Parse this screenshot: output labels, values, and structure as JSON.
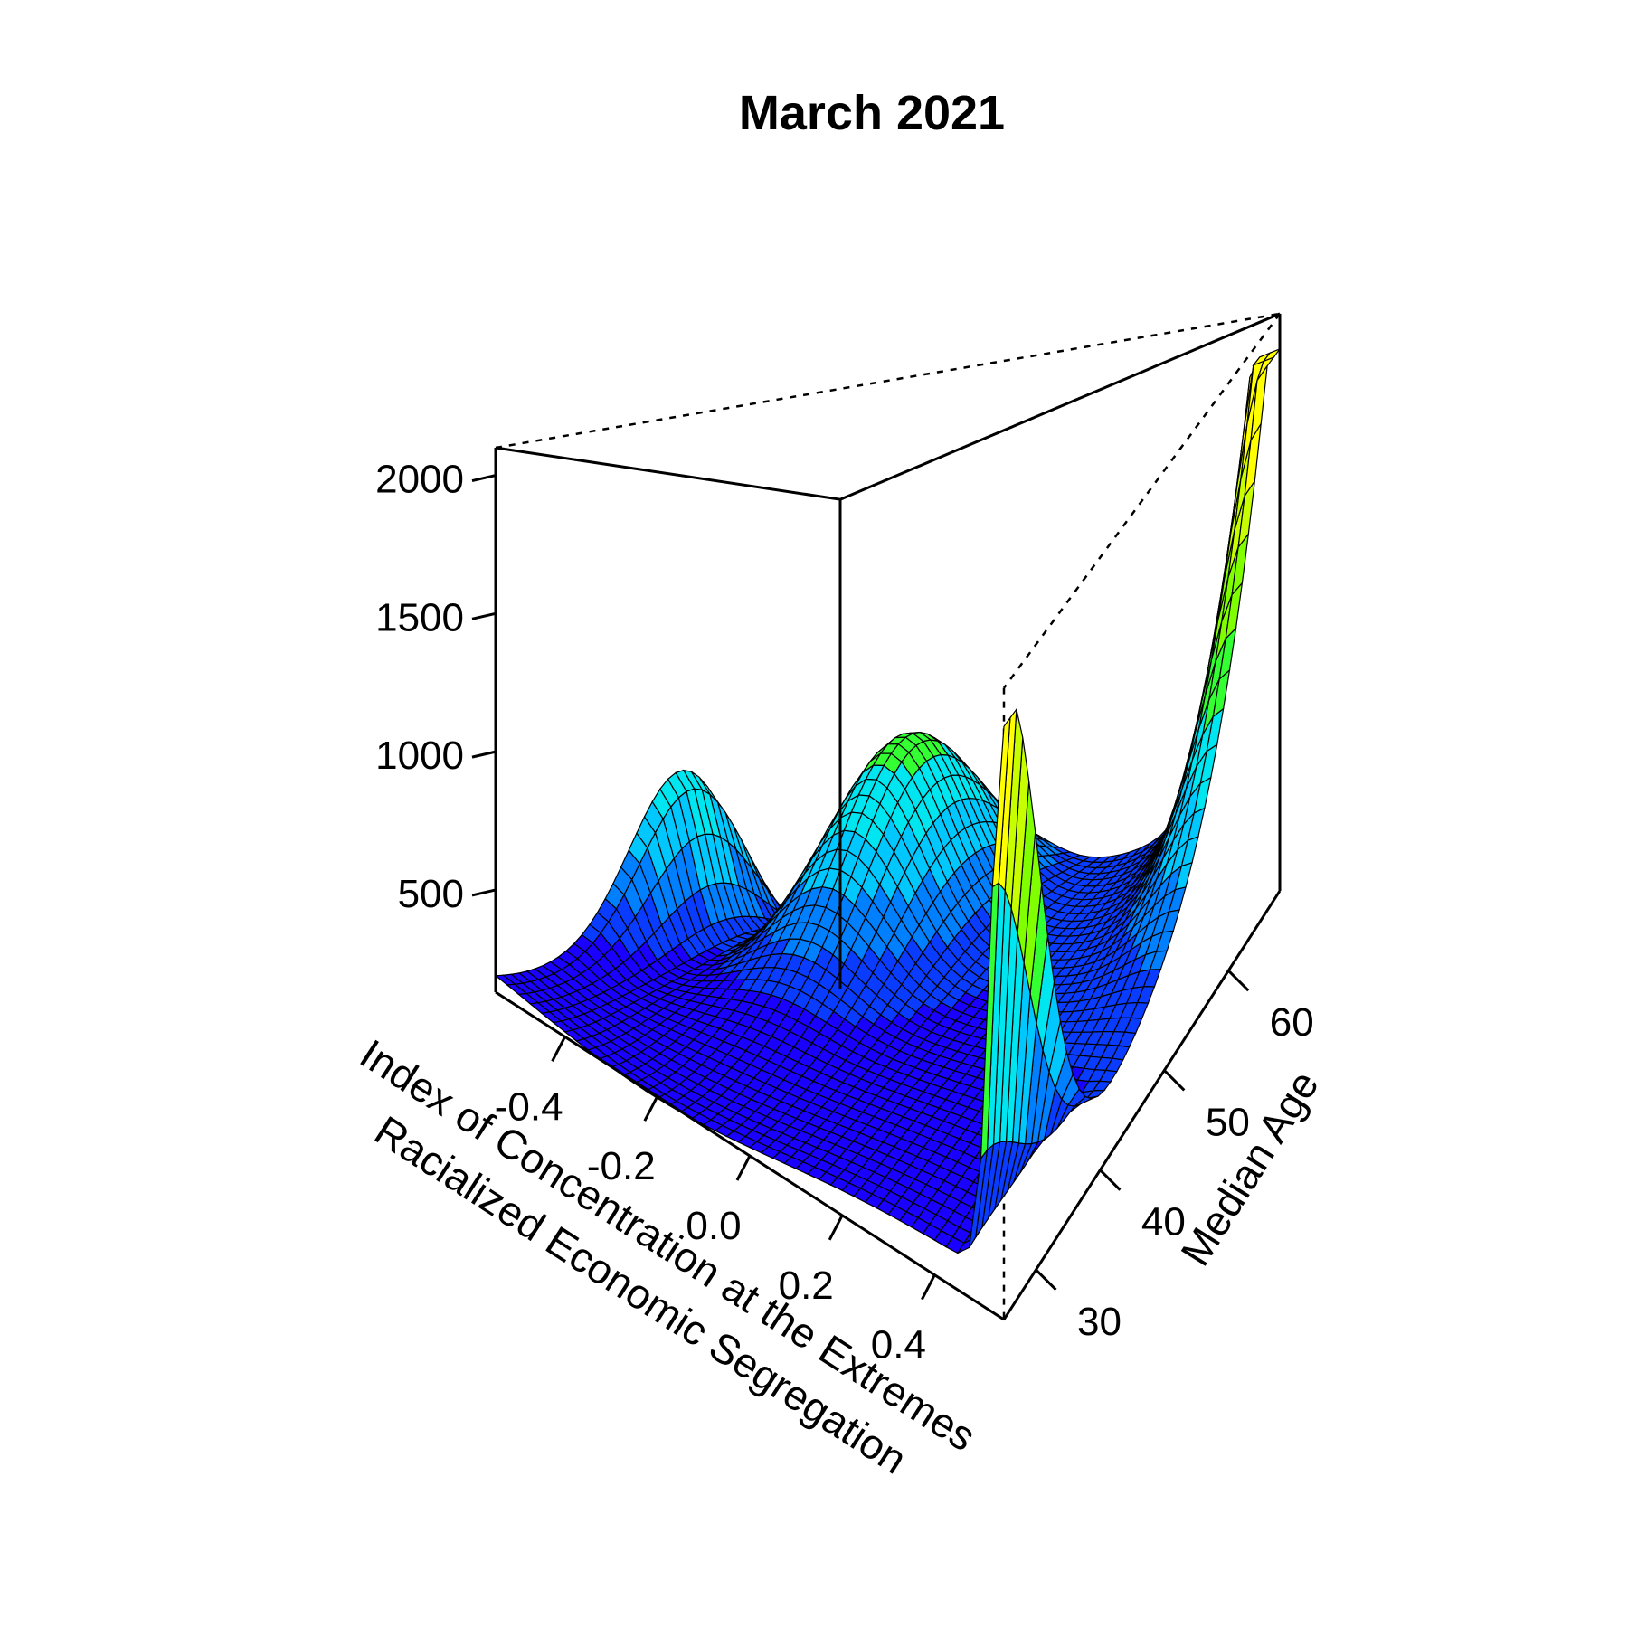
{
  "chart_data": {
    "type": "surface",
    "title": "March 2021",
    "xlabel_line1": "Index of Concentration at the Extremes",
    "xlabel_line2": "Racialized Economic Segregation",
    "ylabel": "Median Age",
    "zlabel": "",
    "xlim": [
      -0.55,
      0.55
    ],
    "ylim": [
      25,
      68
    ],
    "zlim": [
      130,
      2100
    ],
    "x_ticks": [
      {
        "value": -0.4,
        "label": "-0.4"
      },
      {
        "value": -0.2,
        "label": "-0.2"
      },
      {
        "value": 0.0,
        "label": "0.0"
      },
      {
        "value": 0.2,
        "label": "0.2"
      },
      {
        "value": 0.4,
        "label": "0.4"
      }
    ],
    "y_ticks": [
      {
        "value": 30,
        "label": "30"
      },
      {
        "value": 40,
        "label": "40"
      },
      {
        "value": 50,
        "label": "50"
      },
      {
        "value": 60,
        "label": "60"
      }
    ],
    "z_ticks": [
      {
        "value": 500,
        "label": "500"
      },
      {
        "value": 1000,
        "label": "1000"
      },
      {
        "value": 1500,
        "label": "1500"
      },
      {
        "value": 2000,
        "label": "2000"
      }
    ],
    "color_scale": [
      "#1a00ff",
      "#0a3cff",
      "#0080ff",
      "#00c8ff",
      "#00e6f0",
      "#33ff33",
      "#80ff00",
      "#c8ff00",
      "#ffff00"
    ],
    "mesh_color": "#000000",
    "grid": false,
    "surface_features": {
      "base_level": 250,
      "ridge_back_corner_max": 1960,
      "ridge_near_corner_max": 1850,
      "left_edge_bump": 720
    }
  }
}
